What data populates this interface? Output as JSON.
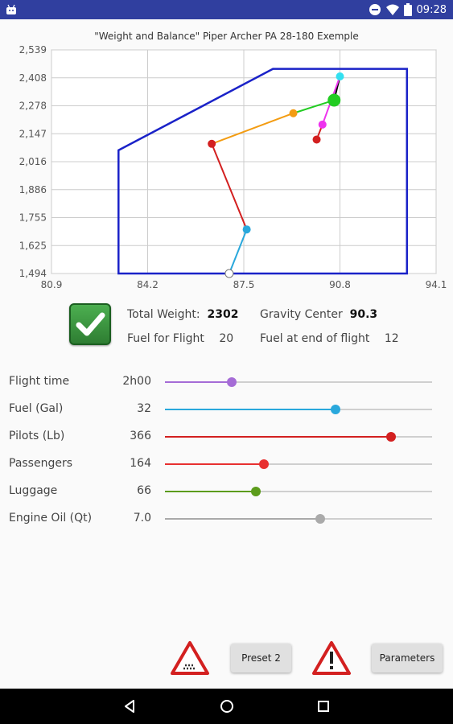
{
  "status_bar": {
    "time": "09:28"
  },
  "chart": {
    "title": "\"Weight and Balance\"   Piper Archer PA 28-180 Exemple",
    "y_ticks": [
      "2,539",
      "2,408",
      "2,278",
      "2,147",
      "2,016",
      "1,886",
      "1,755",
      "1,625",
      "1,494"
    ],
    "x_ticks": [
      "80.9",
      "84.2",
      "87.5",
      "90.8",
      "94.1"
    ]
  },
  "chart_data": {
    "type": "scatter",
    "title": "\"Weight and Balance\"   Piper Archer PA 28-180 Exemple",
    "xlim": [
      80.9,
      94.1
    ],
    "ylim": [
      1494,
      2539
    ],
    "envelope": [
      [
        83.2,
        1494
      ],
      [
        83.2,
        2070
      ],
      [
        88.5,
        2450
      ],
      [
        93.1,
        2450
      ],
      [
        93.1,
        1494
      ]
    ],
    "path": [
      {
        "x": 87.0,
        "y": 1494,
        "color": "#ffffff"
      },
      {
        "x": 87.6,
        "y": 1700,
        "color": "#29a8dc"
      },
      {
        "x": 86.4,
        "y": 2100,
        "color": "#d32020"
      },
      {
        "x": 89.2,
        "y": 2243,
        "color": "#f39c12"
      },
      {
        "x": 90.6,
        "y": 2304,
        "color": "#22cc22"
      },
      {
        "x": 90.8,
        "y": 2415,
        "color": "#33e0f0"
      },
      {
        "x": 90.2,
        "y": 2190,
        "color": "#ee33ee"
      },
      {
        "x": 90.0,
        "y": 2120,
        "color": "#d32020"
      }
    ],
    "grid": true
  },
  "summary": {
    "total_weight_label": "Total Weight:",
    "total_weight_value": "2302",
    "gravity_center_label": "Gravity Center",
    "gravity_center_value": "90.3",
    "fuel_for_flight_label": "Fuel for Flight",
    "fuel_for_flight_value": "20",
    "fuel_end_label": "Fuel at end of flight",
    "fuel_end_value": "12"
  },
  "sliders": [
    {
      "label": "Flight time",
      "value": "2h00",
      "fraction": 0.25,
      "color": "#a56cd6"
    },
    {
      "label": "Fuel (Gal)",
      "value": "32",
      "fraction": 0.64,
      "color": "#29a8dc"
    },
    {
      "label": "Pilots (Lb)",
      "value": "366",
      "fraction": 0.847,
      "color": "#d32020"
    },
    {
      "label": "Passengers",
      "value": "164",
      "fraction": 0.37,
      "color": "#e83030"
    },
    {
      "label": "Luggage",
      "value": "66",
      "fraction": 0.34,
      "color": "#5c9c1c"
    },
    {
      "label": "Engine Oil (Qt)",
      "value": "7.0",
      "fraction": 0.58,
      "color": "#aaaaaa"
    }
  ],
  "buttons": {
    "preset_label": "Preset 2",
    "parameters_label": "Parameters"
  }
}
